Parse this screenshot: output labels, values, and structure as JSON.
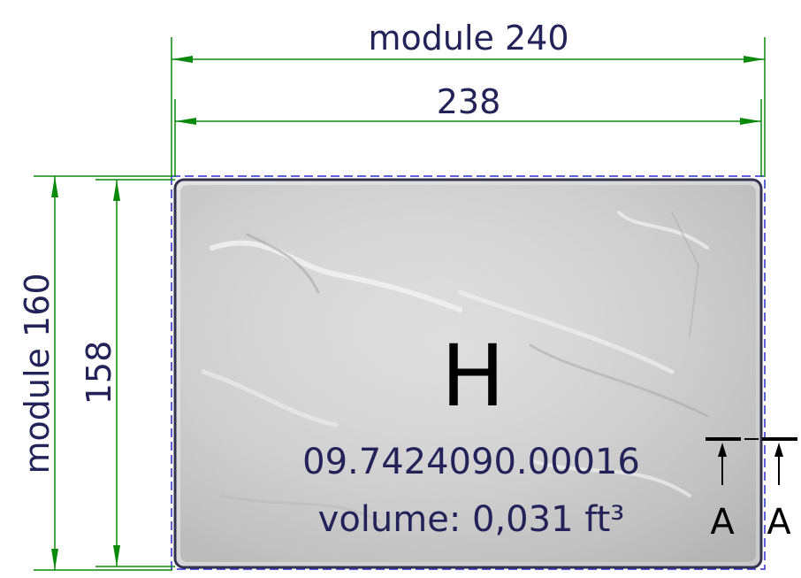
{
  "dimensions": {
    "top_outer": "module 240",
    "top_inner": "238",
    "left_outer": "module 160",
    "left_inner": "158"
  },
  "tile": {
    "letter": "H",
    "code": "09.7424090.00016",
    "volume": "volume: 0,031 ft³"
  },
  "section_marks": {
    "left": "A",
    "right": "A"
  },
  "colors": {
    "dimension_line": "#0a8a0a",
    "outline": "#2b2bd0",
    "text": "#23235a",
    "tile_fill": "#d9d9d9",
    "tile_edge": "#33334d"
  }
}
